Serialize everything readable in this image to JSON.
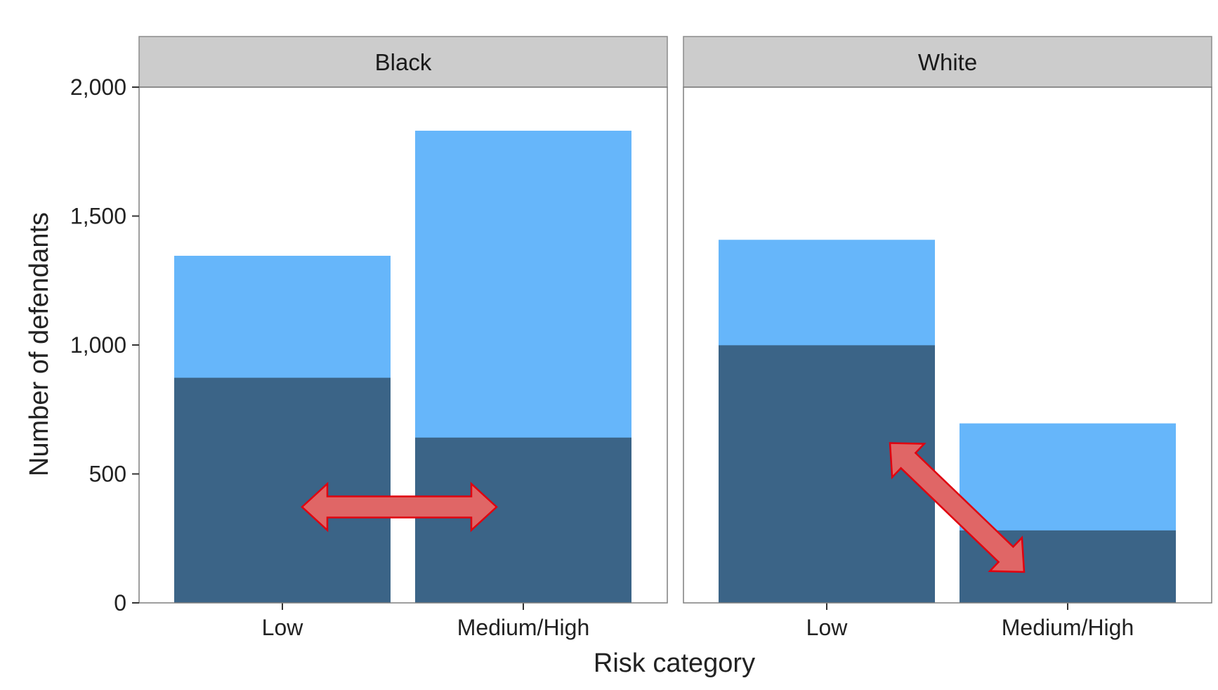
{
  "chart_data": {
    "type": "bar",
    "stacked": true,
    "facet_by": "race",
    "facets": [
      {
        "label": "Black",
        "categories": [
          "Low",
          "Medium/High"
        ],
        "series": [
          {
            "values": [
              873,
              641
            ]
          },
          {
            "values": [
              1346,
              1831
            ]
          }
        ]
      },
      {
        "label": "White",
        "categories": [
          "Low",
          "Medium/High"
        ],
        "series": [
          {
            "values": [
              999,
              281
            ]
          },
          {
            "values": [
              1408,
              696
            ]
          }
        ]
      }
    ],
    "xlabel": "Risk category",
    "ylabel": "Number of defendants",
    "ylim": [
      0,
      2000
    ],
    "yticks": [
      0,
      500,
      1000,
      1500,
      2000
    ],
    "ytick_labels": [
      "0",
      "500",
      "1,000",
      "1,500",
      "2,000"
    ],
    "grid": false,
    "legend": "none",
    "annotations": [
      {
        "type": "double-arrow",
        "facet": "Black",
        "from": {
          "category": "Low",
          "y": 372
        },
        "to": {
          "category": "Medium/High",
          "y": 372
        }
      },
      {
        "type": "double-arrow",
        "facet": "White",
        "from": {
          "category": "Low",
          "y": 620
        },
        "to": {
          "category": "Medium/High",
          "y": 120
        }
      }
    ],
    "colors": {
      "total": "#66b6fa",
      "inner": "#3b6487",
      "arrow_fill": "#e06666",
      "arrow_stroke": "#e0000f",
      "strip": "#cccccc"
    }
  }
}
